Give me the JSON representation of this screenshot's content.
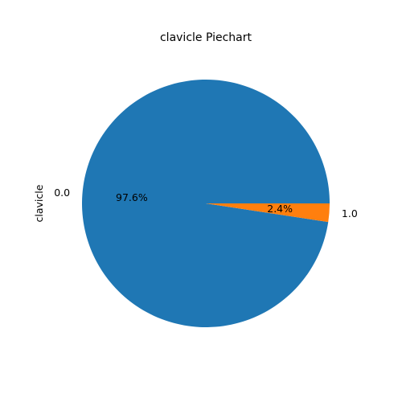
{
  "chart_data": {
    "type": "pie",
    "title": "clavicle Piechart",
    "ylabel": "clavicle",
    "slices": [
      {
        "label": "0.0",
        "value": 97.6,
        "pct_label": "97.6%",
        "color": "#1f77b4"
      },
      {
        "label": "1.0",
        "value": 2.4,
        "pct_label": "2.4%",
        "color": "#ff7f0e"
      }
    ]
  }
}
